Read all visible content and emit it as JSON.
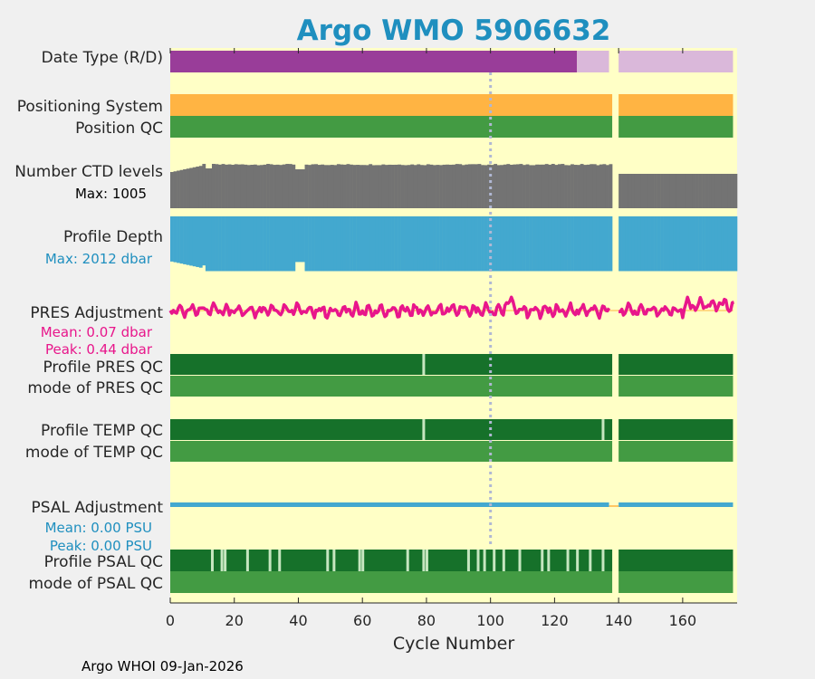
{
  "chart_data": {
    "type": "heatmap",
    "title": "Argo WMO 5906632",
    "xlabel": "Cycle Number",
    "xlim": [
      0,
      177
    ],
    "xticks": [
      0,
      20,
      40,
      60,
      80,
      100,
      120,
      140,
      160
    ],
    "gap_cycles": [
      138,
      140
    ],
    "marker_cycle": 100,
    "last_cycle": 176,
    "rows": {
      "data_type": {
        "label": "Date Type (R/D)",
        "segments": [
          {
            "from": 0,
            "to": 127,
            "value": "D"
          },
          {
            "from": 127,
            "to": 137,
            "value": "R"
          },
          {
            "from": 140,
            "to": 176,
            "value": "R"
          }
        ]
      },
      "positioning_system": {
        "label": "Positioning System"
      },
      "position_qc": {
        "label": "Position QC"
      },
      "ctd_levels": {
        "label": "Number CTD levels",
        "max_label": "Max: 1005",
        "max": 1005
      },
      "profile_depth": {
        "label": "Profile Depth",
        "max_label": "Max: 2012 dbar",
        "max": 2012
      },
      "pres_adjustment": {
        "label": "PRES Adjustment",
        "mean_label": "Mean: 0.07 dbar",
        "peak_label": "Peak: 0.44 dbar"
      },
      "profile_pres_qc": {
        "label": "Profile PRES QC",
        "light_cycles": [
          79
        ]
      },
      "mode_pres_qc": {
        "label": "mode of PRES QC"
      },
      "profile_temp_qc": {
        "label": "Profile TEMP QC",
        "light_cycles": [
          79,
          135
        ]
      },
      "mode_temp_qc": {
        "label": "mode of TEMP QC"
      },
      "psal_adjustment": {
        "label": "PSAL Adjustment",
        "mean_label": "Mean: 0.00 PSU",
        "peak_label": "Peak: 0.00 PSU"
      },
      "profile_psal_qc": {
        "label": "Profile PSAL QC",
        "light_cycles": [
          13,
          16,
          17,
          24,
          31,
          34,
          49,
          51,
          59,
          60,
          74,
          79,
          80,
          93,
          96,
          98,
          101,
          104,
          109,
          116,
          118,
          124,
          127,
          131,
          135
        ]
      },
      "mode_psal_qc": {
        "label": "mode of PSAL QC"
      }
    }
  },
  "footer": "Argo WHOI 09-Jan-2026",
  "colors": {
    "background": "#ffffc6",
    "title": "#1f8fbf",
    "data_type_d": "#993d99",
    "data_type_r": "#dab8da",
    "positioning": "#ffb443",
    "qc_green": "#439b43",
    "qc_dark": "#16712a",
    "qc_light": "#c6e6c0",
    "ctd": "#737373",
    "depth": "#43a8cf",
    "pres": "#e8168b",
    "psal": "#43a8cf",
    "marker": "#b0b8d4"
  }
}
